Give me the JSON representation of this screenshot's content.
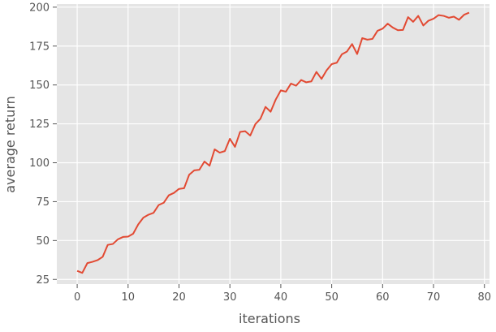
{
  "chart_data": {
    "type": "line",
    "title": "",
    "xlabel": "iterations",
    "ylabel": "average return",
    "xlim": [
      -4,
      81
    ],
    "ylim": [
      22,
      202
    ],
    "xticks": [
      0,
      10,
      20,
      30,
      40,
      50,
      60,
      70,
      80
    ],
    "yticks": [
      25,
      50,
      75,
      100,
      125,
      150,
      175,
      200
    ],
    "grid": true,
    "colors": {
      "line": "#E24A33",
      "plot_bg": "#E5E5E5",
      "grid": "#FFFFFF"
    },
    "series": [
      {
        "x": [
          0,
          1,
          2,
          3,
          4,
          5,
          6,
          7,
          8,
          9,
          10,
          11,
          12,
          13,
          14,
          15,
          16,
          17,
          18,
          19,
          20,
          21,
          22,
          23,
          24,
          25,
          26,
          27,
          28,
          29,
          30,
          31,
          32,
          33,
          34,
          35,
          36,
          37,
          38,
          39,
          40,
          41,
          42,
          43,
          44,
          45,
          46,
          47,
          48,
          49,
          50,
          51,
          52,
          53,
          54,
          55,
          56,
          57,
          58,
          59,
          60,
          61,
          62,
          63,
          64,
          65,
          66,
          67,
          68,
          69,
          70,
          71,
          72,
          73,
          74,
          75,
          76,
          77
        ],
        "values": [
          30.5,
          29.2,
          35.5,
          36.3,
          37.4,
          39.5,
          47.2,
          47.8,
          50.8,
          52.3,
          52.5,
          54.4,
          60.4,
          64.7,
          66.6,
          67.8,
          72.8,
          74.3,
          79.1,
          80.6,
          83.2,
          83.6,
          92.3,
          95.1,
          95.5,
          100.8,
          98.1,
          108.6,
          106.5,
          107.5,
          115.4,
          110.2,
          119.8,
          120.3,
          117.5,
          124.8,
          128.3,
          135.9,
          132.8,
          140.6,
          146.5,
          145.7,
          150.9,
          149.5,
          153.2,
          151.7,
          152.3,
          158.4,
          153.9,
          159.4,
          163.4,
          164.3,
          169.7,
          171.5,
          176.3,
          169.9,
          180.1,
          179.1,
          179.6,
          184.8,
          186.2,
          189.4,
          186.9,
          185.2,
          185.4,
          193.6,
          190.6,
          194.4,
          188.2,
          191.3,
          192.6,
          194.9,
          194.4,
          193.2,
          193.9,
          191.9,
          195.1,
          196.5
        ]
      }
    ]
  }
}
